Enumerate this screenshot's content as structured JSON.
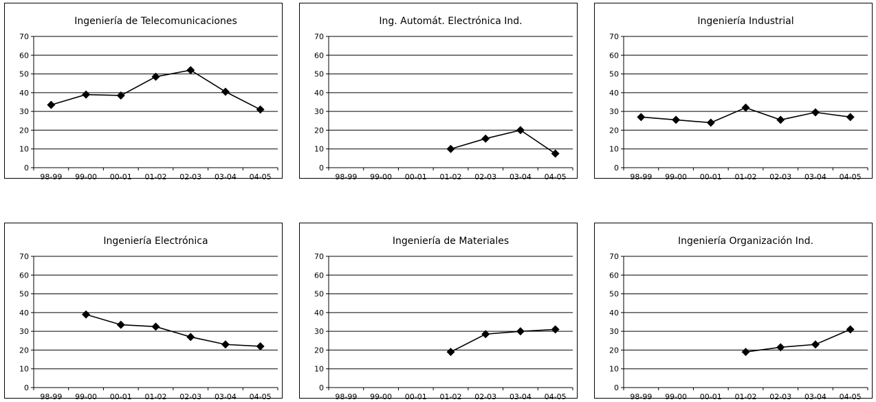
{
  "chart_data": [
    {
      "type": "line",
      "title": "Ingeniería de Telecomunicaciones",
      "categories": [
        "98-99",
        "99-00",
        "00-01",
        "01-02",
        "02-03",
        "03-04",
        "04-05"
      ],
      "values": [
        33.5,
        39,
        38.5,
        48.5,
        52,
        40.5,
        31
      ],
      "ylim": [
        0,
        70
      ],
      "yticks": [
        "0",
        "10",
        "20",
        "30",
        "40",
        "50",
        "60",
        "70"
      ],
      "grid": true
    },
    {
      "type": "line",
      "title": "Ing. Automát. Electrónica Ind.",
      "categories": [
        "98-99",
        "99-00",
        "00-01",
        "01-02",
        "02-03",
        "03-04",
        "04-05"
      ],
      "values": [
        null,
        null,
        null,
        10,
        15.5,
        20,
        7.5
      ],
      "ylim": [
        0,
        70
      ],
      "yticks": [
        "0",
        "10",
        "20",
        "30",
        "40",
        "50",
        "60",
        "70"
      ],
      "grid": true
    },
    {
      "type": "line",
      "title": "Ingeniería Industrial",
      "categories": [
        "98-99",
        "99-00",
        "00-01",
        "01-02",
        "02-03",
        "03-04",
        "04-05"
      ],
      "values": [
        27,
        25.5,
        24,
        32,
        25.5,
        29.5,
        27
      ],
      "ylim": [
        0,
        70
      ],
      "yticks": [
        "0",
        "10",
        "20",
        "30",
        "40",
        "50",
        "60",
        "70"
      ],
      "grid": true
    },
    {
      "type": "line",
      "title": "Ingeniería Electrónica",
      "categories": [
        "98-99",
        "99-00",
        "00-01",
        "01-02",
        "02-03",
        "03-04",
        "04-05"
      ],
      "values": [
        null,
        39,
        33.5,
        32.5,
        27,
        23,
        22
      ],
      "ylim": [
        0,
        70
      ],
      "yticks": [
        "0",
        "10",
        "20",
        "30",
        "40",
        "50",
        "60",
        "70"
      ],
      "grid": true
    },
    {
      "type": "line",
      "title": "Ingeniería de Materiales",
      "categories": [
        "98-99",
        "99-00",
        "00-01",
        "01-02",
        "02-03",
        "03-04",
        "04-05"
      ],
      "values": [
        null,
        null,
        null,
        19,
        28.5,
        30,
        31
      ],
      "ylim": [
        0,
        70
      ],
      "yticks": [
        "0",
        "10",
        "20",
        "30",
        "40",
        "50",
        "60",
        "70"
      ],
      "grid": true
    },
    {
      "type": "line",
      "title": "Ingeniería Organización Ind.",
      "categories": [
        "98-99",
        "99-00",
        "00-01",
        "01-02",
        "02-03",
        "03-04",
        "04-05"
      ],
      "values": [
        null,
        null,
        null,
        19,
        21.5,
        23,
        31
      ],
      "ylim": [
        0,
        70
      ],
      "yticks": [
        "0",
        "10",
        "20",
        "30",
        "40",
        "50",
        "60",
        "70"
      ],
      "grid": true
    }
  ]
}
